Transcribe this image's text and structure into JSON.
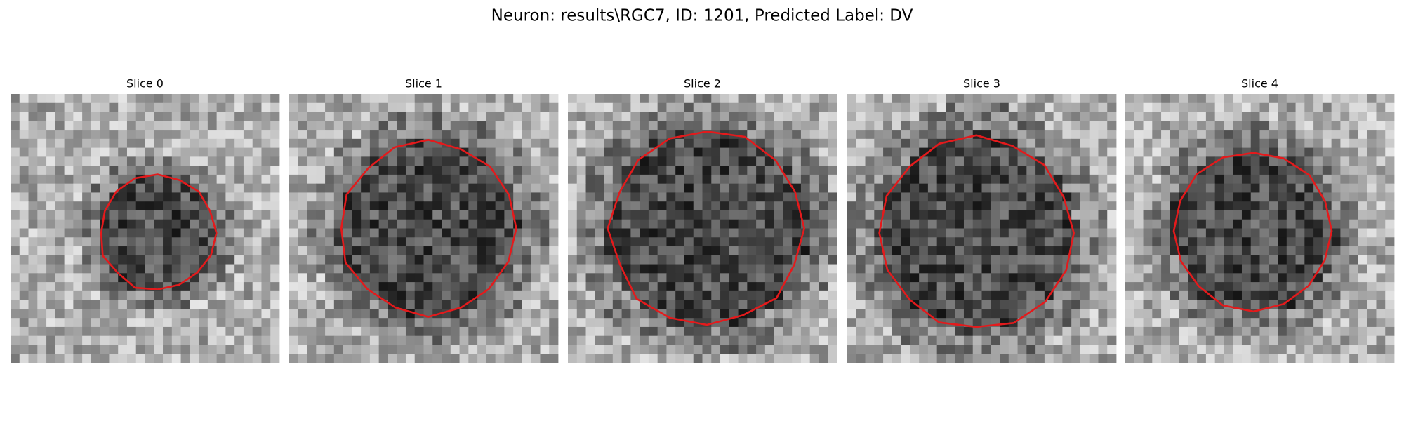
{
  "title": "Neuron: results\\RGC7, ID: 1201, Predicted Label: DV",
  "panels": [
    {
      "title": "Slice 0"
    },
    {
      "title": "Slice 1"
    },
    {
      "title": "Slice 2"
    },
    {
      "title": "Slice 3"
    },
    {
      "title": "Slice 4"
    }
  ]
}
